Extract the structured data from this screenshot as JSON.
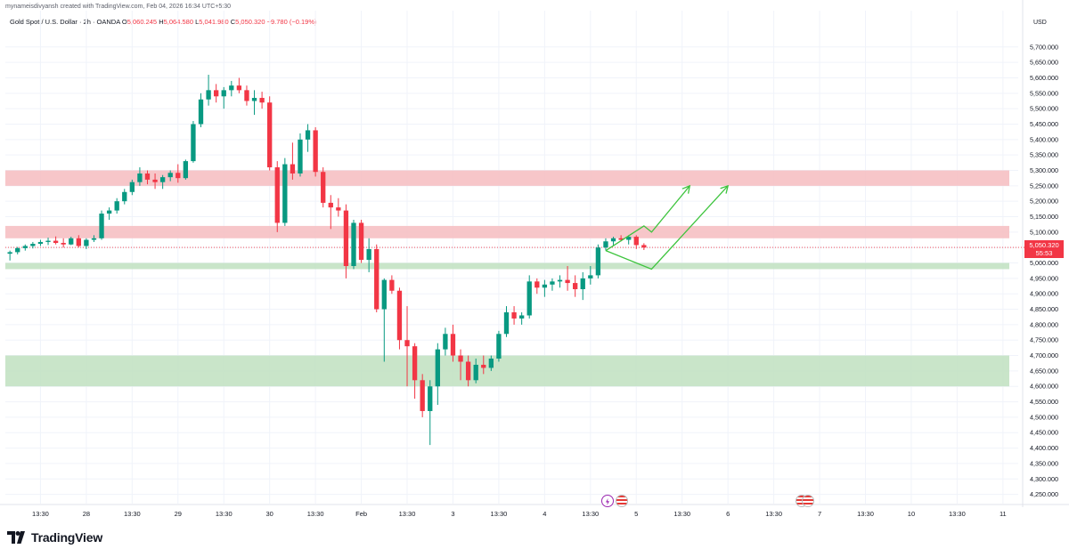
{
  "caption": "mynameisdivyansh created with TradingView.com, Feb 04, 2026 16:34 UTC+5:30",
  "ohlc": {
    "symbol": "Gold Spot / U.S. Dollar · 2h · OANDA",
    "o_label": "O",
    "o": "5,060.245",
    "h_label": "H",
    "h": "5,064.580",
    "l_label": "L",
    "l": "5,041.980",
    "c_label": "C",
    "c": "5,050.320",
    "change": "−9.780 (−0.19%)"
  },
  "currency": "USD",
  "last_price": {
    "price": "5,050.320",
    "countdown": "55:53"
  },
  "brand": {
    "name": "TradingView"
  },
  "colors": {
    "up": "#089981",
    "down": "#f23645",
    "supply_zone": "#f6bcc0",
    "demand_zone": "#bfe0c0",
    "projection": "#3ec43e"
  },
  "chart_data": {
    "type": "candlestick",
    "y_axis": {
      "range": [
        4220,
        5760
      ],
      "ticks": [
        "5,700.000",
        "5,650.000",
        "5,600.000",
        "5,550.000",
        "5,500.000",
        "5,450.000",
        "5,400.000",
        "5,350.000",
        "5,300.000",
        "5,250.000",
        "5,200.000",
        "5,150.000",
        "5,100.000",
        "5,050.000",
        "5,000.000",
        "4,950.000",
        "4,900.000",
        "4,850.000",
        "4,800.000",
        "4,750.000",
        "4,700.000",
        "4,650.000",
        "4,600.000",
        "4,550.000",
        "4,500.000",
        "4,450.000",
        "4,400.000",
        "4,350.000",
        "4,300.000",
        "4,250.000"
      ],
      "tick_values": [
        5700,
        5650,
        5600,
        5550,
        5500,
        5450,
        5400,
        5350,
        5300,
        5250,
        5200,
        5150,
        5100,
        5050,
        5000,
        4950,
        4900,
        4850,
        4800,
        4750,
        4700,
        4650,
        4600,
        4550,
        4500,
        4450,
        4400,
        4350,
        4300,
        4250
      ]
    },
    "x_axis": {
      "labels": [
        "13:30",
        "28",
        "13:30",
        "29",
        "13:30",
        "30",
        "13:30",
        "Feb",
        "13:30",
        "3",
        "13:30",
        "4",
        "13:30",
        "5",
        "13:30",
        "6",
        "13:30",
        "7",
        "13:30",
        "10",
        "13:30",
        "11"
      ],
      "label_slots": [
        4,
        10,
        16,
        22,
        28,
        34,
        40,
        46,
        52,
        58,
        64,
        70,
        76,
        82,
        88,
        94,
        100,
        106,
        112,
        118,
        124,
        130
      ]
    },
    "slot_range": [
      -0.6,
      132
    ],
    "zones": [
      {
        "kind": "supply",
        "low": 5250,
        "high": 5300
      },
      {
        "kind": "supply",
        "low": 5080,
        "high": 5120
      },
      {
        "kind": "demand",
        "low": 4980,
        "high": 5000
      },
      {
        "kind": "demand",
        "low": 4600,
        "high": 4700
      }
    ],
    "current_price_line": 5050.32,
    "projection": [
      {
        "slot": 78,
        "price": 5040
      },
      {
        "slot": 83,
        "price": 5120
      },
      {
        "slot": 84,
        "price": 5100
      },
      {
        "slot": 89,
        "price": 5250
      },
      {
        "slot": 78,
        "price": 5040
      },
      {
        "slot": 84,
        "price": 4980
      },
      {
        "slot": 94,
        "price": 5250
      }
    ],
    "candles": [
      {
        "o": 5030,
        "h": 5040,
        "l": 5008,
        "c": 5035
      },
      {
        "o": 5035,
        "h": 5052,
        "l": 5028,
        "c": 5048
      },
      {
        "o": 5048,
        "h": 5060,
        "l": 5040,
        "c": 5055
      },
      {
        "o": 5055,
        "h": 5068,
        "l": 5047,
        "c": 5062
      },
      {
        "o": 5062,
        "h": 5075,
        "l": 5055,
        "c": 5068
      },
      {
        "o": 5068,
        "h": 5082,
        "l": 5058,
        "c": 5072
      },
      {
        "o": 5072,
        "h": 5086,
        "l": 5060,
        "c": 5065
      },
      {
        "o": 5065,
        "h": 5080,
        "l": 5050,
        "c": 5060
      },
      {
        "o": 5060,
        "h": 5085,
        "l": 5058,
        "c": 5080
      },
      {
        "o": 5080,
        "h": 5090,
        "l": 5050,
        "c": 5055
      },
      {
        "o": 5055,
        "h": 5080,
        "l": 5045,
        "c": 5075
      },
      {
        "o": 5075,
        "h": 5090,
        "l": 5068,
        "c": 5080
      },
      {
        "o": 5080,
        "h": 5170,
        "l": 5075,
        "c": 5160
      },
      {
        "o": 5160,
        "h": 5180,
        "l": 5140,
        "c": 5170
      },
      {
        "o": 5170,
        "h": 5210,
        "l": 5160,
        "c": 5200
      },
      {
        "o": 5200,
        "h": 5240,
        "l": 5190,
        "c": 5230
      },
      {
        "o": 5230,
        "h": 5270,
        "l": 5220,
        "c": 5262
      },
      {
        "o": 5262,
        "h": 5310,
        "l": 5250,
        "c": 5290
      },
      {
        "o": 5290,
        "h": 5300,
        "l": 5255,
        "c": 5270
      },
      {
        "o": 5270,
        "h": 5290,
        "l": 5240,
        "c": 5262
      },
      {
        "o": 5262,
        "h": 5285,
        "l": 5240,
        "c": 5278
      },
      {
        "o": 5278,
        "h": 5300,
        "l": 5265,
        "c": 5292
      },
      {
        "o": 5292,
        "h": 5320,
        "l": 5260,
        "c": 5275
      },
      {
        "o": 5275,
        "h": 5335,
        "l": 5270,
        "c": 5330
      },
      {
        "o": 5330,
        "h": 5460,
        "l": 5325,
        "c": 5450
      },
      {
        "o": 5450,
        "h": 5550,
        "l": 5440,
        "c": 5530
      },
      {
        "o": 5530,
        "h": 5610,
        "l": 5510,
        "c": 5560
      },
      {
        "o": 5560,
        "h": 5580,
        "l": 5520,
        "c": 5540
      },
      {
        "o": 5540,
        "h": 5570,
        "l": 5500,
        "c": 5560
      },
      {
        "o": 5560,
        "h": 5590,
        "l": 5540,
        "c": 5575
      },
      {
        "o": 5575,
        "h": 5600,
        "l": 5550,
        "c": 5560
      },
      {
        "o": 5560,
        "h": 5575,
        "l": 5510,
        "c": 5525
      },
      {
        "o": 5525,
        "h": 5560,
        "l": 5480,
        "c": 5535
      },
      {
        "o": 5535,
        "h": 5555,
        "l": 5500,
        "c": 5520
      },
      {
        "o": 5520,
        "h": 5540,
        "l": 5300,
        "c": 5310
      },
      {
        "o": 5310,
        "h": 5330,
        "l": 5100,
        "c": 5130
      },
      {
        "o": 5130,
        "h": 5340,
        "l": 5120,
        "c": 5320
      },
      {
        "o": 5320,
        "h": 5390,
        "l": 5270,
        "c": 5290
      },
      {
        "o": 5290,
        "h": 5420,
        "l": 5280,
        "c": 5400
      },
      {
        "o": 5400,
        "h": 5450,
        "l": 5360,
        "c": 5430
      },
      {
        "o": 5430,
        "h": 5440,
        "l": 5280,
        "c": 5295
      },
      {
        "o": 5295,
        "h": 5310,
        "l": 5180,
        "c": 5195
      },
      {
        "o": 5195,
        "h": 5220,
        "l": 5110,
        "c": 5180
      },
      {
        "o": 5180,
        "h": 5210,
        "l": 5150,
        "c": 5170
      },
      {
        "o": 5170,
        "h": 5190,
        "l": 4950,
        "c": 4990
      },
      {
        "o": 4990,
        "h": 5140,
        "l": 4980,
        "c": 5130
      },
      {
        "o": 5130,
        "h": 5140,
        "l": 5000,
        "c": 5010
      },
      {
        "o": 5010,
        "h": 5080,
        "l": 4970,
        "c": 5045
      },
      {
        "o": 5045,
        "h": 5060,
        "l": 4840,
        "c": 4850
      },
      {
        "o": 4850,
        "h": 4950,
        "l": 4680,
        "c": 4945
      },
      {
        "o": 4945,
        "h": 4960,
        "l": 4900,
        "c": 4910
      },
      {
        "o": 4910,
        "h": 4920,
        "l": 4720,
        "c": 4750
      },
      {
        "o": 4750,
        "h": 4860,
        "l": 4600,
        "c": 4730
      },
      {
        "o": 4730,
        "h": 4740,
        "l": 4560,
        "c": 4620
      },
      {
        "o": 4620,
        "h": 4640,
        "l": 4500,
        "c": 4520
      },
      {
        "o": 4520,
        "h": 4620,
        "l": 4410,
        "c": 4600
      },
      {
        "o": 4600,
        "h": 4740,
        "l": 4540,
        "c": 4720
      },
      {
        "o": 4720,
        "h": 4790,
        "l": 4700,
        "c": 4770
      },
      {
        "o": 4770,
        "h": 4800,
        "l": 4680,
        "c": 4700
      },
      {
        "o": 4700,
        "h": 4720,
        "l": 4620,
        "c": 4680
      },
      {
        "o": 4680,
        "h": 4700,
        "l": 4600,
        "c": 4620
      },
      {
        "o": 4620,
        "h": 4690,
        "l": 4610,
        "c": 4670
      },
      {
        "o": 4670,
        "h": 4700,
        "l": 4640,
        "c": 4660
      },
      {
        "o": 4660,
        "h": 4700,
        "l": 4650,
        "c": 4690
      },
      {
        "o": 4690,
        "h": 4780,
        "l": 4680,
        "c": 4770
      },
      {
        "o": 4770,
        "h": 4860,
        "l": 4760,
        "c": 4840
      },
      {
        "o": 4840,
        "h": 4860,
        "l": 4800,
        "c": 4820
      },
      {
        "o": 4820,
        "h": 4840,
        "l": 4800,
        "c": 4830
      },
      {
        "o": 4830,
        "h": 4960,
        "l": 4820,
        "c": 4940
      },
      {
        "o": 4940,
        "h": 4950,
        "l": 4900,
        "c": 4920
      },
      {
        "o": 4920,
        "h": 4945,
        "l": 4890,
        "c": 4930
      },
      {
        "o": 4930,
        "h": 4950,
        "l": 4910,
        "c": 4940
      },
      {
        "o": 4940,
        "h": 4960,
        "l": 4920,
        "c": 4945
      },
      {
        "o": 4945,
        "h": 4990,
        "l": 4910,
        "c": 4935
      },
      {
        "o": 4935,
        "h": 4960,
        "l": 4890,
        "c": 4915
      },
      {
        "o": 4915,
        "h": 4970,
        "l": 4880,
        "c": 4950
      },
      {
        "o": 4950,
        "h": 4990,
        "l": 4930,
        "c": 4960
      },
      {
        "o": 4960,
        "h": 5060,
        "l": 4950,
        "c": 5050
      },
      {
        "o": 5050,
        "h": 5080,
        "l": 5040,
        "c": 5070
      },
      {
        "o": 5070,
        "h": 5085,
        "l": 5055,
        "c": 5080
      },
      {
        "o": 5080,
        "h": 5090,
        "l": 5070,
        "c": 5075
      },
      {
        "o": 5075,
        "h": 5090,
        "l": 5060,
        "c": 5085
      },
      {
        "o": 5085,
        "h": 5090,
        "l": 5045,
        "c": 5058
      },
      {
        "o": 5058,
        "h": 5064,
        "l": 5042,
        "c": 5050
      }
    ]
  }
}
